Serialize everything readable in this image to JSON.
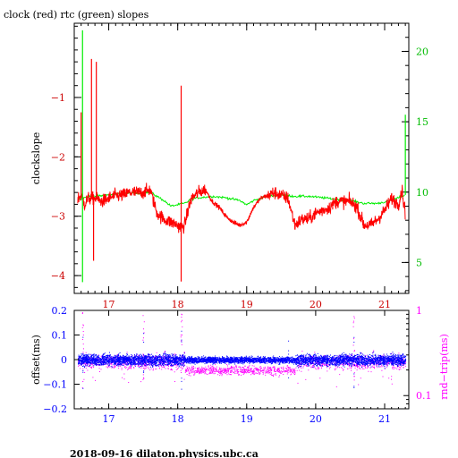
{
  "title": "clock (red) rtc (green) slopes",
  "footer": "2018-09-16 dilaton.physics.ubc.ca",
  "colors": {
    "clock": "#ff0000",
    "rtc": "#00ee00",
    "offset": "#0000ff",
    "rndtrip": "#ff00ff",
    "axis": "#000000"
  },
  "chart_data": [
    {
      "type": "line",
      "title": "clock (red) rtc (green) slopes",
      "xlabel": "",
      "ylabel": "clockslope",
      "y2label": "",
      "xlim": [
        16.5,
        21.35
      ],
      "ylim": [
        -4.3,
        0.25
      ],
      "y2lim": [
        2.8,
        22
      ],
      "x_ticks": [
        17,
        18,
        19,
        20,
        21
      ],
      "y_ticks": [
        -1,
        -2,
        -3,
        -4
      ],
      "y2_ticks": [
        5,
        10,
        15,
        20
      ],
      "series": [
        {
          "color": "red",
          "axis": "left",
          "x": [
            16.55,
            16.6,
            16.65,
            16.7,
            16.8,
            16.9,
            17.0,
            17.1,
            17.2,
            17.3,
            17.4,
            17.5,
            17.6,
            17.7,
            17.8,
            17.9,
            18.0,
            18.05,
            18.1,
            18.15,
            18.2,
            18.3,
            18.4,
            18.5,
            18.6,
            18.7,
            18.8,
            18.9,
            19.0,
            19.1,
            19.2,
            19.3,
            19.4,
            19.5,
            19.6,
            19.7,
            19.8,
            19.9,
            20.0,
            20.1,
            20.2,
            20.3,
            20.4,
            20.5,
            20.6,
            20.7,
            20.8,
            20.9,
            21.0,
            21.1,
            21.2,
            21.25,
            21.3
          ],
          "y": [
            -2.7,
            -2.65,
            -2.8,
            -2.7,
            -2.7,
            -2.75,
            -2.7,
            -2.65,
            -2.65,
            -2.6,
            -2.6,
            -2.6,
            -2.55,
            -2.95,
            -3.05,
            -3.1,
            -3.15,
            -3.2,
            -3.15,
            -2.9,
            -2.7,
            -2.6,
            -2.55,
            -2.75,
            -2.85,
            -3.0,
            -3.1,
            -3.15,
            -3.1,
            -2.85,
            -2.7,
            -2.65,
            -2.6,
            -2.65,
            -2.7,
            -3.15,
            -3.05,
            -3.05,
            -2.95,
            -2.9,
            -2.85,
            -2.75,
            -2.75,
            -2.75,
            -2.85,
            -3.15,
            -3.15,
            -3.05,
            -2.9,
            -2.7,
            -2.8,
            -2.55,
            -2.95
          ]
        },
        {
          "color": "green",
          "axis": "right",
          "x": [
            16.55,
            16.6,
            16.65,
            16.7,
            16.8,
            17.0,
            17.2,
            17.4,
            17.6,
            17.8,
            17.9,
            18.0,
            18.1,
            18.2,
            18.3,
            18.5,
            18.7,
            18.9,
            19.0,
            19.1,
            19.3,
            19.5,
            19.7,
            19.9,
            20.1,
            20.3,
            20.5,
            20.7,
            20.9,
            21.1,
            21.2,
            21.3
          ],
          "y": [
            9.5,
            9.5,
            9.6,
            9.7,
            9.7,
            9.8,
            9.9,
            9.9,
            10.0,
            9.4,
            9.0,
            9.1,
            9.2,
            9.5,
            9.6,
            9.7,
            9.6,
            9.4,
            9.1,
            9.4,
            9.7,
            9.8,
            9.7,
            9.7,
            9.6,
            9.5,
            9.4,
            9.2,
            9.2,
            9.4,
            9.6,
            9.8
          ]
        }
      ],
      "spikes_red": [
        {
          "x": 16.6,
          "y": -1.25
        },
        {
          "x": 16.75,
          "y": -0.35
        },
        {
          "x": 16.78,
          "y": -3.75
        },
        {
          "x": 16.82,
          "y": -0.4
        },
        {
          "x": 18.05,
          "y": -0.8
        },
        {
          "x": 18.05,
          "y": -4.1
        }
      ],
      "spikes_green": [
        {
          "x": 16.62,
          "y": 21.5
        },
        {
          "x": 16.62,
          "y": 3.6
        },
        {
          "x": 21.3,
          "y": 15.5
        }
      ]
    },
    {
      "type": "scatter",
      "xlabel": "",
      "ylabel": "offset(ms)",
      "y2label": "rnd−trip(ms)",
      "xlim": [
        16.5,
        21.35
      ],
      "ylim": [
        -0.2,
        0.2
      ],
      "y2_scale": "log",
      "y2lim": [
        0.07,
        1
      ],
      "x_ticks": [
        17,
        18,
        19,
        20,
        21
      ],
      "y_ticks": [
        "0.2",
        "0.1",
        "0",
        "−0.1",
        "−0.2"
      ],
      "y_tick_values": [
        0.2,
        0.1,
        0,
        -0.1,
        -0.2
      ],
      "y2_ticks": [
        "1",
        "0.1"
      ],
      "y2_tick_values": [
        1,
        0.1
      ],
      "series": [
        {
          "color": "blue",
          "axis": "left",
          "center": 0.0,
          "spread": 0.03
        },
        {
          "color": "magenta",
          "axis": "right",
          "center": 0.25,
          "spread": 0.04,
          "band": {
            "x": [
              18.1,
              19.7
            ],
            "center": 0.2
          }
        }
      ]
    }
  ]
}
